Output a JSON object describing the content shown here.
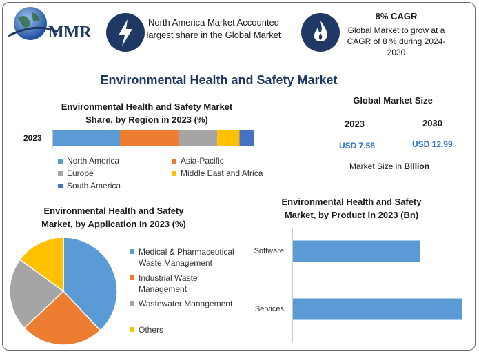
{
  "brand": {
    "name": "MMR"
  },
  "header": {
    "highlight1": "North America Market Accounted largest share in the Global Market",
    "cagr_title": "8% CAGR",
    "cagr_text": "Global Market to grow at a CAGR of 8 % during 2024-2030"
  },
  "main_title": "Environmental Health and Safety Market",
  "market_size": {
    "title": "Global Market Size",
    "year1": "2023",
    "year2": "2030",
    "value1": "USD 7.58",
    "value2": "USD 12.99",
    "note_prefix": "Market Size in ",
    "note_unit": "Billion"
  },
  "colors": {
    "navy": "#1f3864",
    "blue": "#5b9bd5",
    "orange": "#ed7d31",
    "gray": "#a5a5a5",
    "yellow": "#ffc000",
    "darkblue": "#4472c4"
  },
  "chart_data": [
    {
      "type": "bar",
      "orientation": "horizontal-stacked",
      "title": "Environmental Health and Safety Market Share, by Region in 2023 (%)",
      "categories": [
        "2023"
      ],
      "series": [
        {
          "name": "North America",
          "values": [
            33
          ],
          "color": "#5b9bd5"
        },
        {
          "name": "Asia-Pacific",
          "values": [
            29
          ],
          "color": "#ed7d31"
        },
        {
          "name": "Europe",
          "values": [
            19
          ],
          "color": "#a5a5a5"
        },
        {
          "name": "Middle East and Africa",
          "values": [
            11
          ],
          "color": "#ffc000"
        },
        {
          "name": "South America",
          "values": [
            7
          ],
          "color": "#4472c4"
        }
      ],
      "xlim": [
        0,
        100
      ]
    },
    {
      "type": "pie",
      "title": "Environmental Health and Safety Market, by Application  In 2023 (%)",
      "labels": [
        "Medical & Pharmaceutical Waste Management",
        "Industrial Waste Management",
        "Wastewater Management",
        "Others"
      ],
      "values": [
        38,
        25,
        22,
        15
      ],
      "colors": [
        "#5b9bd5",
        "#ed7d31",
        "#a5a5a5",
        "#ffc000"
      ]
    },
    {
      "type": "bar",
      "orientation": "horizontal",
      "title": "Environmental Health and Safety Market, by Product in 2023 (Bn)",
      "categories": [
        "Software",
        "Services"
      ],
      "values": [
        2.6,
        3.5
      ],
      "xlim": [
        0,
        4
      ],
      "color": "#5b9bd5"
    }
  ]
}
